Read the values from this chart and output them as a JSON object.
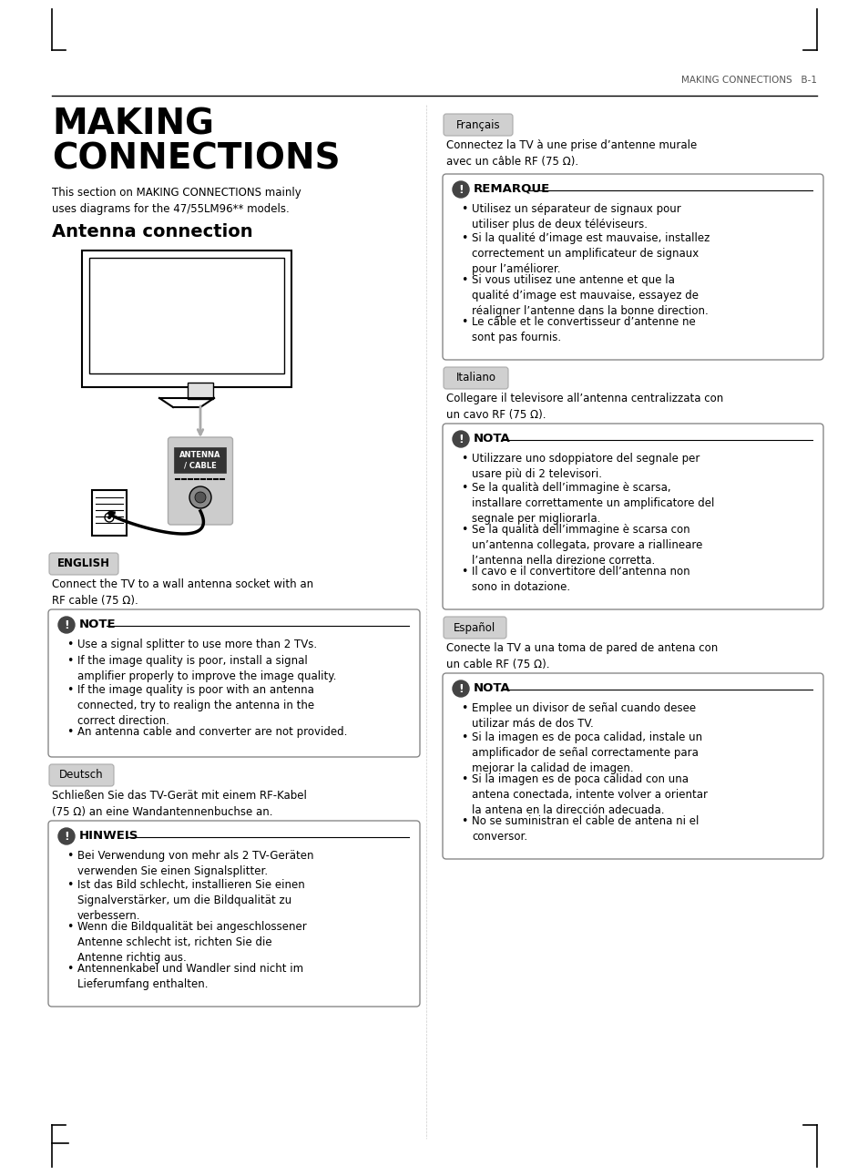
{
  "page_title_header": "MAKING CONNECTIONS   B-1",
  "main_title_line1": "MAKING",
  "main_title_line2": "CONNECTIONS",
  "subtitle": "This section on MAKING CONNECTIONS mainly\nuses diagrams for the 47/55LM96** models.",
  "section_title": "Antenna connection",
  "bg_color": "#ffffff",
  "header_line_color": "#000000",
  "tag_bg_color": "#d8d8d8",
  "note_box_border": "#888888",
  "note_icon_color": "#333333",
  "languages": [
    {
      "tag": "ENGLISH",
      "tag_bold": true,
      "intro": "Connect the TV to a wall antenna socket with an\nRF cable (75 Ω).",
      "note_title": "NOTE",
      "note_items": [
        "Use a signal splitter to use more than 2 TVs.",
        "If the image quality is poor, install a signal\namplifier properly to improve the image quality.",
        "If the image quality is poor with an antenna\nconnected, try to realign the antenna in the\ncorrect direction.",
        "An antenna cable and converter are not provided."
      ]
    },
    {
      "tag": "Deutsch",
      "tag_bold": false,
      "intro": "Schließen Sie das TV-Gerät mit einem RF-Kabel\n(75 Ω) an eine Wandantennenbuchse an.",
      "note_title": "HINWEIS",
      "note_items": [
        "Bei Verwendung von mehr als 2 TV-Geräten\nverwenden Sie einen Signalsplitter.",
        "Ist das Bild schlecht, installieren Sie einen\nSignalverstärker, um die Bildqualität zu\nverbessern.",
        "Wenn die Bildqualität bei angeschlossener\nAntenne schlecht ist, richten Sie die\nAntenne richtig aus.",
        "Antennenkabel und Wandler sind nicht im\nLieferumfang enthalten."
      ]
    }
  ],
  "languages_right": [
    {
      "tag": "Français",
      "tag_bold": false,
      "intro": "Connectez la TV à une prise d’antenne murale\navec un câble RF (75 Ω).",
      "note_title": "REMARQUE",
      "note_items": [
        "Utilisez un séparateur de signaux pour\nutiliser plus de deux téléviseurs.",
        "Si la qualité d’image est mauvaise, installez\ncorrectement un amplificateur de signaux\npour l’améliorer.",
        "Si vous utilisez une antenne et que la\nqualité d’image est mauvaise, essayez de\nréaligner l’antenne dans la bonne direction.",
        "Le câble et le convertisseur d’antenne ne\nsont pas fournis."
      ]
    },
    {
      "tag": "Italiano",
      "tag_bold": false,
      "intro": "Collegare il televisore all’antenna centralizzata con\nun cavo RF (75 Ω).",
      "note_title": "NOTA",
      "note_items": [
        "Utilizzare uno sdoppiatore del segnale per\nusare più di 2 televisori.",
        "Se la qualità dell’immagine è scarsa,\ninstallare correttamente un amplificatore del\nsegnale per migliorarla.",
        "Se la qualità dell’immagine è scarsa con\nun’antenna collegata, provare a riallineare\nl’antenna nella direzione corretta.",
        "Il cavo e il convertitore dell’antenna non\nsono in dotazione."
      ]
    },
    {
      "tag": "Español",
      "tag_bold": false,
      "intro": "Conecte la TV a una toma de pared de antena con\nun cable RF (75 Ω).",
      "note_title": "NOTA",
      "note_items": [
        "Emplee un divisor de señal cuando desee\nutilizar más de dos TV.",
        "Si la imagen es de poca calidad, instale un\namplificador de señal correctamente para\nmejorar la calidad de imagen.",
        "Si la imagen es de poca calidad con una\nantena conectada, intente volver a orientar\nla antena en la dirección adecuada.",
        "No se suministran el cable de antena ni el\nconversor."
      ]
    }
  ]
}
